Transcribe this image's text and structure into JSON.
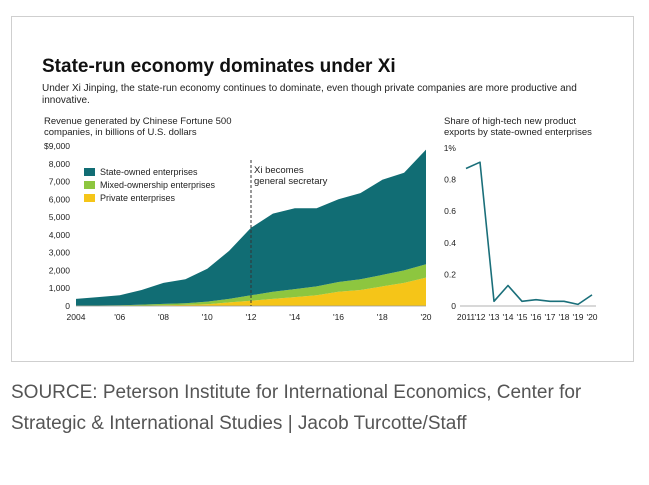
{
  "title": "State-run economy dominates under Xi",
  "subtitle": "Under Xi Jinping, the state-run economy continues to dominate, even though private companies are more productive and innovative.",
  "source": "SOURCE: Peterson Institute for International Economics, Center for Strategic & International Studies | Jacob Turcotte/Staff",
  "colors": {
    "soe": "#116d74",
    "mixed": "#8dc63f",
    "private": "#f5c518",
    "line": "#1a6f7a",
    "annotation": "#333333"
  },
  "chart_data": [
    {
      "type": "area",
      "stacked": true,
      "title": "Revenue generated by Chinese Fortune 500 companies, in billions of U.S. dollars",
      "x": [
        2004,
        2005,
        2006,
        2007,
        2008,
        2009,
        2010,
        2011,
        2012,
        2013,
        2014,
        2015,
        2016,
        2017,
        2018,
        2019,
        2020
      ],
      "xticks": [
        "2004",
        "'06",
        "'08",
        "'10",
        "'12",
        "'14",
        "'16",
        "'18",
        "'20"
      ],
      "xtick_values": [
        2004,
        2006,
        2008,
        2010,
        2012,
        2014,
        2016,
        2018,
        2020
      ],
      "yticks": [
        "0",
        "1,000",
        "2,000",
        "3,000",
        "4,000",
        "5,000",
        "6,000",
        "7,000",
        "8,000",
        "$9,000"
      ],
      "ytick_values": [
        0,
        1000,
        2000,
        3000,
        4000,
        5000,
        6000,
        7000,
        8000,
        9000
      ],
      "ylim": [
        0,
        9000
      ],
      "legend_position": "top-left",
      "series": [
        {
          "name": "Private enterprises",
          "color": "#f5c518",
          "values": [
            0,
            0,
            0,
            20,
            40,
            60,
            100,
            200,
            300,
            400,
            500,
            600,
            800,
            900,
            1100,
            1300,
            1600
          ]
        },
        {
          "name": "Mixed-ownership enterprises",
          "color": "#8dc63f",
          "values": [
            20,
            30,
            40,
            60,
            80,
            100,
            150,
            200,
            300,
            400,
            450,
            500,
            550,
            600,
            650,
            700,
            750
          ]
        },
        {
          "name": "State-owned enterprises",
          "color": "#116d74",
          "values": [
            380,
            470,
            570,
            820,
            1180,
            1340,
            1850,
            2700,
            3800,
            4400,
            4550,
            4400,
            4650,
            4850,
            5350,
            5500,
            6450
          ]
        }
      ],
      "annotation": {
        "x": 2012,
        "lines": [
          "Xi becomes",
          "general secretary"
        ]
      }
    },
    {
      "type": "line",
      "title": "Share of high-tech new product exports by state-owned enterprises",
      "x": [
        2011,
        2012,
        2013,
        2014,
        2015,
        2016,
        2017,
        2018,
        2019,
        2020
      ],
      "values": [
        0.87,
        0.91,
        0.03,
        0.13,
        0.03,
        0.04,
        0.03,
        0.03,
        0.01,
        0.07
      ],
      "xticks": [
        "2011",
        "'12",
        "'13",
        "'14",
        "'15",
        "'16",
        "'17",
        "'18",
        "'19",
        "'20"
      ],
      "yticks": [
        "0",
        "0.2",
        "0.4",
        "0.6",
        "0.8",
        "1%"
      ],
      "ytick_values": [
        0,
        0.2,
        0.4,
        0.6,
        0.8,
        1.0
      ],
      "ylim": [
        0,
        1
      ]
    }
  ]
}
